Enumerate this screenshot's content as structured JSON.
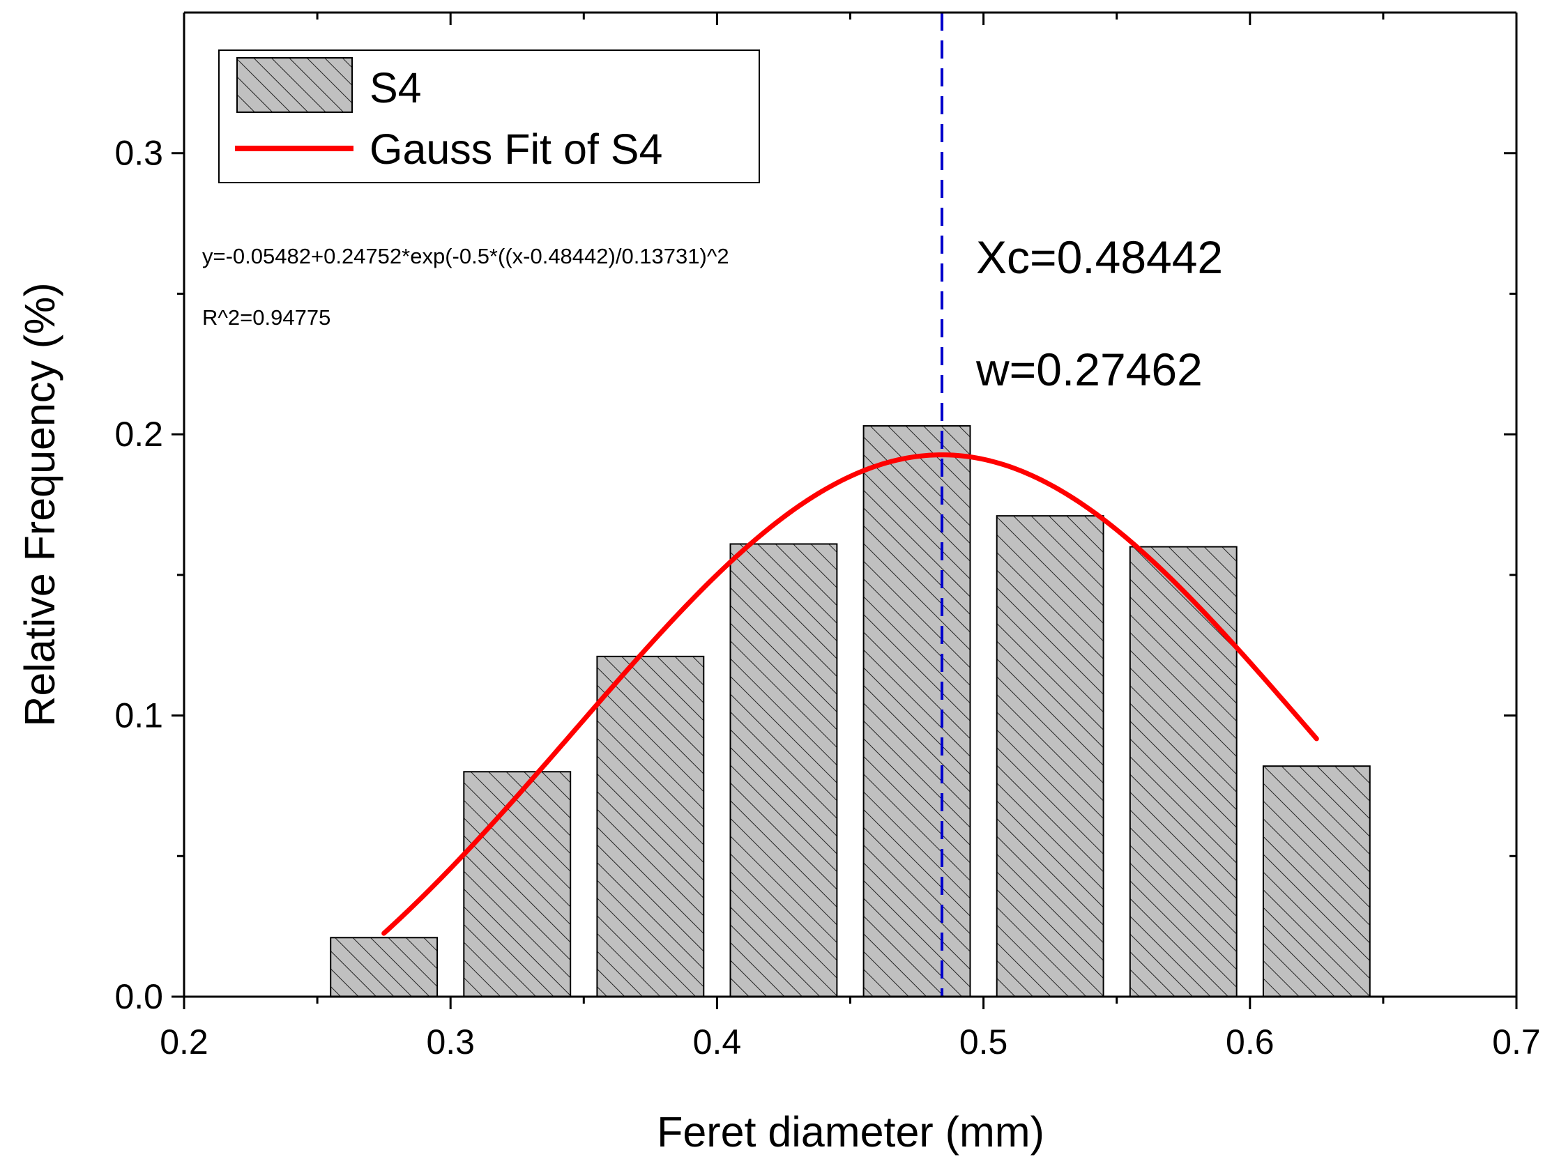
{
  "chart_data": {
    "type": "bar",
    "title": "",
    "xlabel": "Feret diameter (mm)",
    "ylabel": "Relative Frequency (%)",
    "xlim": [
      0.2,
      0.7
    ],
    "ylim": [
      0,
      0.35
    ],
    "x_ticks": [
      0.2,
      0.3,
      0.4,
      0.5,
      0.6,
      0.7
    ],
    "x_tick_labels": [
      "0.2",
      "0.3",
      "0.4",
      "0.5",
      "0.6",
      "0.7"
    ],
    "y_ticks": [
      0.0,
      0.1,
      0.2,
      0.3
    ],
    "y_tick_labels": [
      "0.0",
      "0.1",
      "0.2",
      "0.3"
    ],
    "bar_width": 0.04,
    "series": [
      {
        "name": "S4",
        "kind": "bar",
        "pattern": "diagonal-hatch",
        "color": "#c0c0c0",
        "x": [
          0.275,
          0.325,
          0.375,
          0.425,
          0.475,
          0.525,
          0.575,
          0.625
        ],
        "values": [
          0.021,
          0.08,
          0.121,
          0.161,
          0.203,
          0.171,
          0.16,
          0.082
        ]
      },
      {
        "name": "Gauss Fit of S4",
        "kind": "line",
        "color": "#ff0000",
        "x_range": [
          0.275,
          0.625
        ],
        "y0": -0.05482,
        "A": 0.24752,
        "xc": 0.48442,
        "sigma": 0.13731
      }
    ],
    "reference_line": {
      "x": 0.48442,
      "style": "dashed",
      "color": "#0000cc"
    },
    "legend": {
      "position": "top-left",
      "entries": [
        "S4",
        "Gauss Fit of S4"
      ]
    },
    "annotations": {
      "equation": "y=-0.05482+0.24752*exp(-0.5*((x-0.48442)/0.13731)^2",
      "r_squared": "R^2=0.94775",
      "xc": "Xc=0.48442",
      "w": "w=0.27462"
    },
    "grid": false
  }
}
